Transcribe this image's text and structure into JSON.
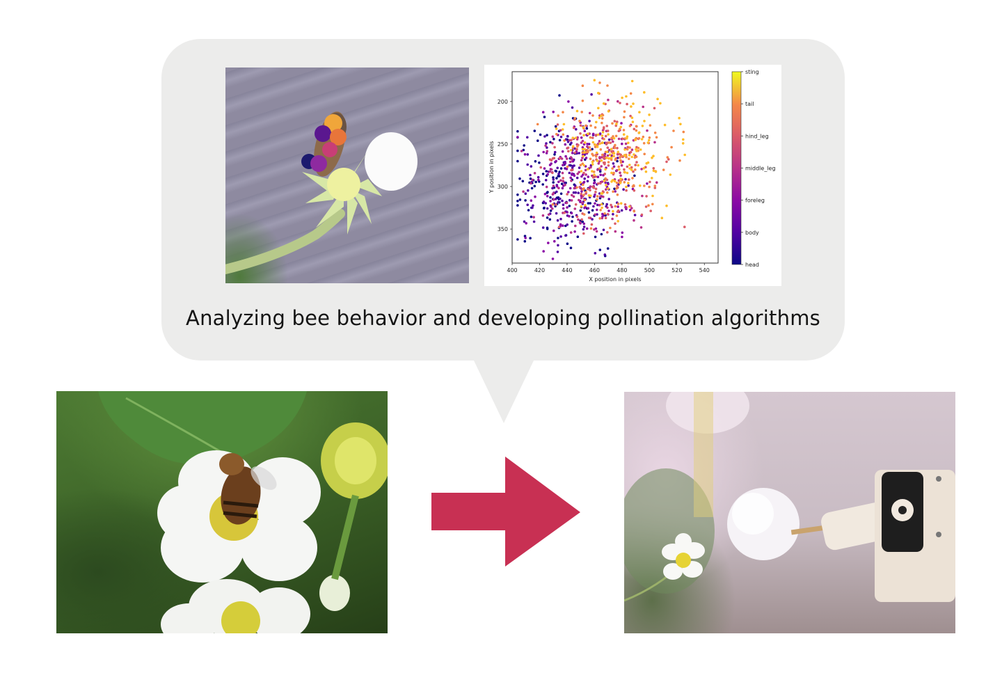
{
  "caption": "Analyzing bee behavior and developing pollination algorithms",
  "colors": {
    "bubble": "#ececeb",
    "arrow": "#c83053",
    "background": "#ffffff"
  },
  "photos": {
    "keypoint_photo": {
      "content": "bee-on-strawberry-flower-with-keypoints"
    },
    "bee_photo": {
      "content": "honeybee-on-strawberry-flower"
    },
    "robot_photo": {
      "content": "robotic-pollinator-with-fluffy-tip"
    }
  },
  "chart_data": {
    "type": "scatter",
    "xlabel": "X position in pixels",
    "ylabel": "Y position in pixels",
    "xlim": [
      400,
      550
    ],
    "ylim": [
      390,
      165
    ],
    "y_inverted": true,
    "x_ticks": [
      400,
      420,
      440,
      460,
      480,
      500,
      520,
      540
    ],
    "y_ticks": [
      200,
      250,
      300,
      350
    ],
    "colorbar": {
      "colormap": "plasma",
      "labels": [
        "head",
        "body",
        "foreleg",
        "middle_leg",
        "hind_leg",
        "tail",
        "sting"
      ]
    },
    "series": [
      {
        "name": "head",
        "centroid": [
          440,
          300
        ]
      },
      {
        "name": "body",
        "centroid": [
          448,
          295
        ]
      },
      {
        "name": "foreleg",
        "centroid": [
          452,
          290
        ]
      },
      {
        "name": "middle_leg",
        "centroid": [
          458,
          285
        ]
      },
      {
        "name": "hind_leg",
        "centroid": [
          468,
          280
        ]
      },
      {
        "name": "tail",
        "centroid": [
          472,
          265
        ]
      },
      {
        "name": "sting",
        "centroid": [
          478,
          255
        ]
      }
    ]
  }
}
